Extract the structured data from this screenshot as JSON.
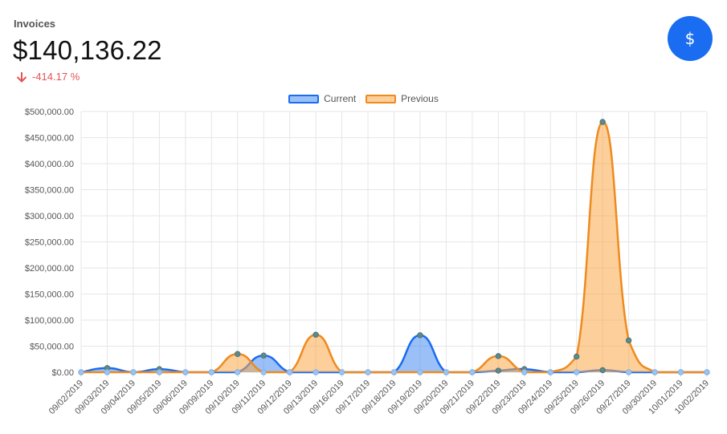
{
  "header": {
    "title": "Invoices",
    "amount": "$140,136.22",
    "change": "-414.17 %",
    "dollar_icon": "$"
  },
  "colors": {
    "current": "#1a6cf1",
    "current_fill": "rgba(54,130,240,0.5)",
    "previous": "#ef8a1f",
    "previous_fill": "rgba(249,167,72,0.55)",
    "negative": "#e55353",
    "grid": "#e6e6e6"
  },
  "chart_data": {
    "type": "area",
    "legend_position": "top-center",
    "grid": true,
    "ylim": [
      0,
      500000
    ],
    "y_ticks": [
      "$0.00",
      "$50,000.00",
      "$100,000.00",
      "$150,000.00",
      "$200,000.00",
      "$250,000.00",
      "$300,000.00",
      "$350,000.00",
      "$400,000.00",
      "$450,000.00",
      "$500,000.00"
    ],
    "categories": [
      "09/02/2019",
      "09/03/2019",
      "09/04/2019",
      "09/05/2019",
      "09/06/2019",
      "09/09/2019",
      "09/10/2019",
      "09/11/2019",
      "09/12/2019",
      "09/13/2019",
      "09/16/2019",
      "09/17/2019",
      "09/18/2019",
      "09/19/2019",
      "09/20/2019",
      "09/21/2019",
      "09/22/2019",
      "09/23/2019",
      "09/24/2019",
      "09/25/2019",
      "09/26/2019",
      "09/27/2019",
      "09/30/2019",
      "10/01/2019",
      "10/02/2019"
    ],
    "series": [
      {
        "name": "Current",
        "values": [
          0,
          8000,
          0,
          6000,
          0,
          0,
          0,
          32000,
          0,
          0,
          0,
          0,
          0,
          71000,
          0,
          0,
          3000,
          6000,
          0,
          0,
          4000,
          0,
          0,
          0,
          0
        ]
      },
      {
        "name": "Previous",
        "values": [
          0,
          0,
          0,
          0,
          0,
          0,
          35000,
          0,
          0,
          72000,
          0,
          0,
          0,
          0,
          0,
          0,
          31000,
          0,
          0,
          30000,
          480000,
          61000,
          0,
          0,
          0
        ]
      }
    ]
  }
}
